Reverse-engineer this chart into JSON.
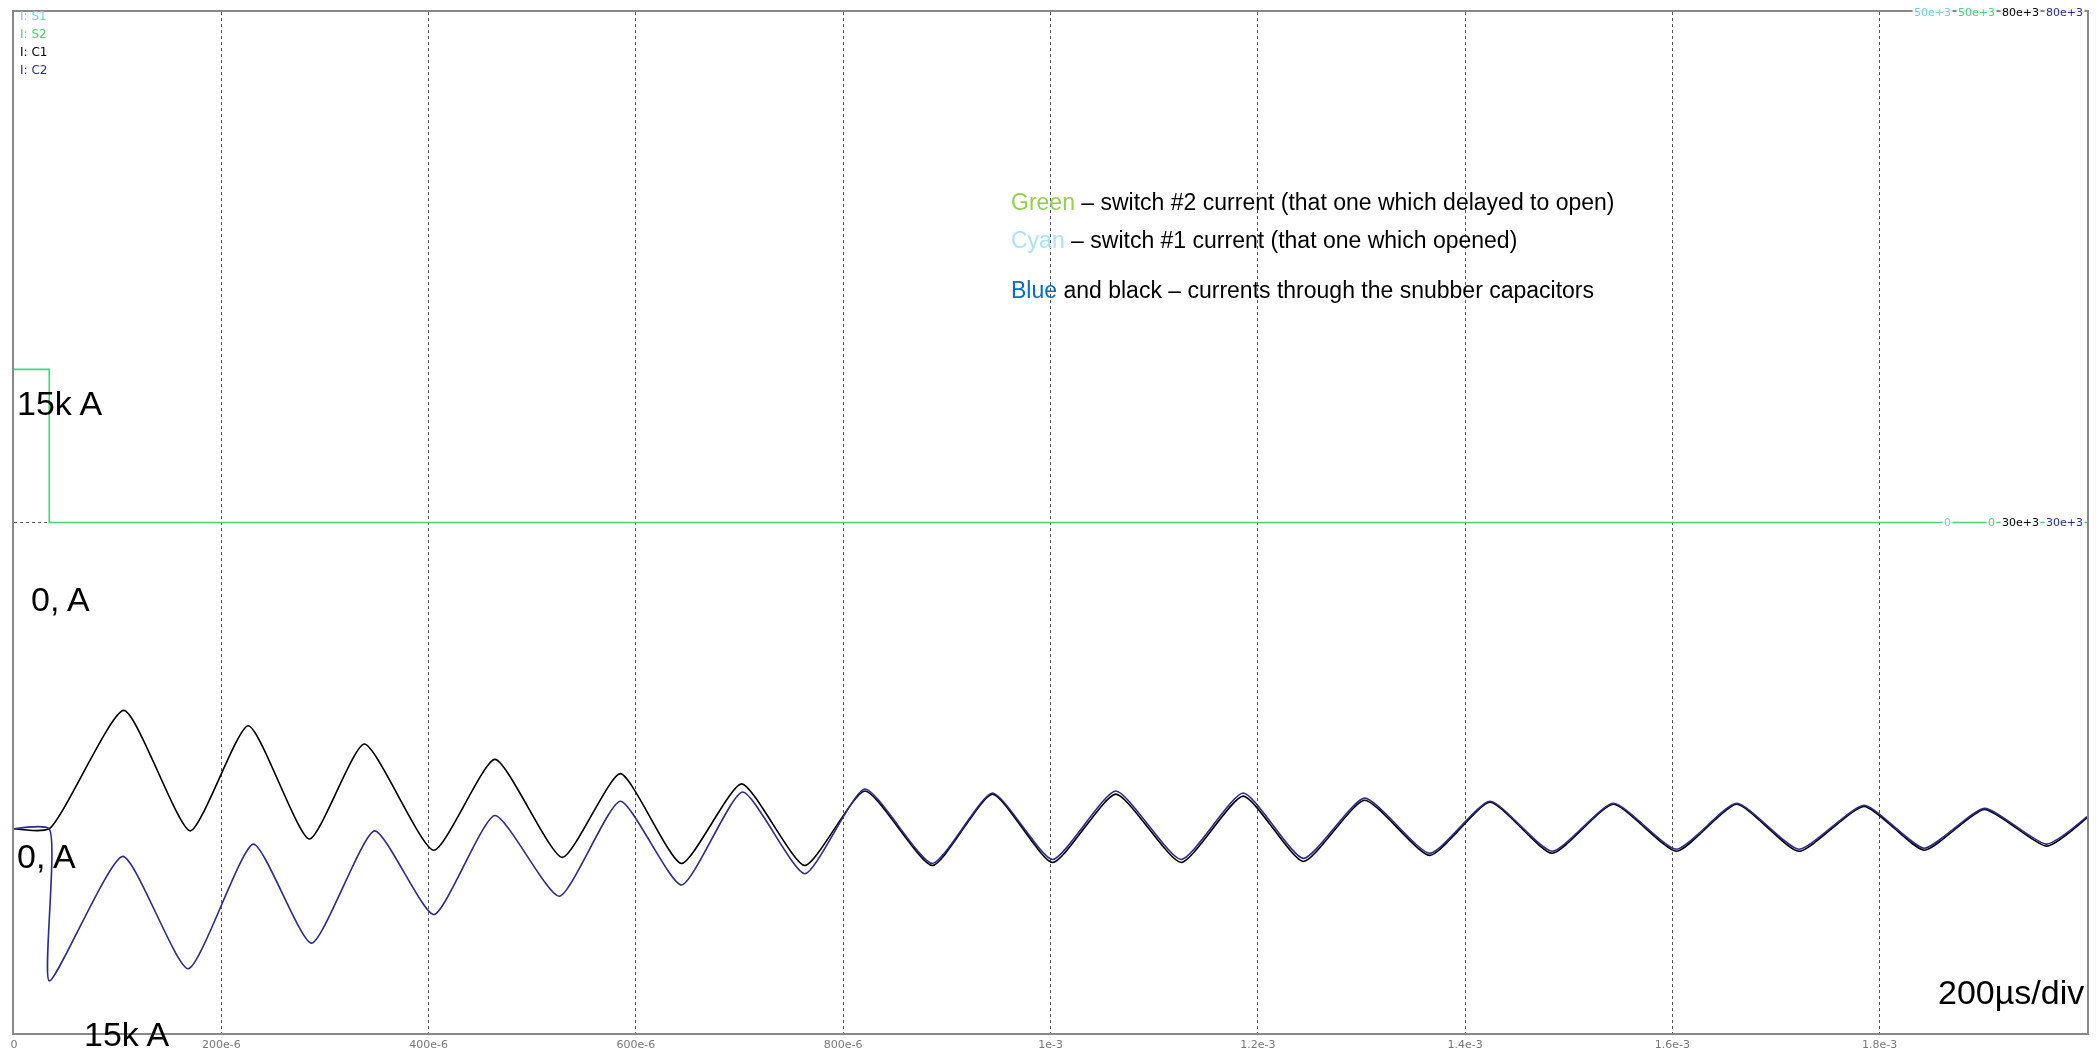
{
  "chart_data": {
    "type": "line",
    "xlim": [
      0,
      0.002
    ],
    "xticks": [
      {
        "value": 0,
        "label": "0"
      },
      {
        "value": 0.0002,
        "label": "200e-6"
      },
      {
        "value": 0.0004,
        "label": "400e-6"
      },
      {
        "value": 0.0006,
        "label": "600e-6"
      },
      {
        "value": 0.0008,
        "label": "800e-6"
      },
      {
        "value": 0.001,
        "label": "1e-3"
      },
      {
        "value": 0.0012,
        "label": "1.2e-3"
      },
      {
        "value": 0.0014,
        "label": "1.4e-3"
      },
      {
        "value": 0.0016,
        "label": "1.6e-3"
      },
      {
        "value": 0.0018,
        "label": "1.8e-3"
      }
    ],
    "ylim": [
      -50000,
      50000
    ],
    "yticks": [
      {
        "value": 50000,
        "label": "50e+3"
      },
      {
        "value": 0,
        "label": "0"
      }
    ],
    "y3lim": [
      -50000,
      50000
    ],
    "y3ticks": [
      {
        "value": 50000,
        "label": "50e+3"
      },
      {
        "value": 0,
        "label": "0"
      }
    ],
    "y2lim": [
      -20000,
      80000
    ],
    "y2ticks": [
      {
        "value": 80000,
        "label": "80e+3"
      },
      {
        "value": 30000,
        "label": "30e+3"
      }
    ],
    "grid": true,
    "series": [
      {
        "name": "I: S1",
        "type": "step",
        "axis": "y",
        "color": "#6fd3e6"
      },
      {
        "name": "I: S2",
        "type": "step",
        "axis": "y3",
        "color": "#3fd97a",
        "x": [
          0,
          3.4e-05,
          0.002
        ],
        "values": [
          15000,
          0,
          0
        ]
      },
      {
        "name": "I: C1",
        "axis": "y2",
        "color": "#000000",
        "x": [
          0,
          3.38e-05,
          0.000106,
          0.00017,
          0.000226,
          0.000285,
          0.000338,
          0.000405,
          0.000464,
          0.000529,
          0.000585,
          0.000644,
          0.000702,
          0.000763,
          0.000821,
          0.000886,
          0.000944,
          0.001002,
          0.001063,
          0.001126,
          0.001186,
          0.001244,
          0.001303,
          0.001366,
          0.001424,
          0.001484,
          0.001543,
          0.001604,
          0.001662,
          0.001722,
          0.001785,
          0.001843,
          0.001901,
          0.001961,
          0.002
        ],
        "values": [
          0,
          0,
          11600,
          -200,
          10100,
          -1000,
          8300,
          -2100,
          6800,
          -2800,
          5400,
          -3400,
          4400,
          -3600,
          3700,
          -3600,
          3400,
          -3300,
          3400,
          -3300,
          3200,
          -3200,
          2800,
          -2600,
          2600,
          -2400,
          2400,
          -2200,
          2400,
          -2200,
          2200,
          -2100,
          1900,
          -1700,
          1100
        ]
      },
      {
        "name": "I: C2",
        "axis": "y2",
        "color": "#2b2b8c",
        "x": [
          0,
          3.38e-05,
          3.4e-05,
          0.000105,
          0.000168,
          0.000231,
          0.000287,
          0.000348,
          0.000405,
          0.000464,
          0.000526,
          0.000585,
          0.000644,
          0.000703,
          0.000763,
          0.000821,
          0.000886,
          0.000944,
          0.001002,
          0.001063,
          0.001126,
          0.001186,
          0.001244,
          0.001303,
          0.001366,
          0.001424,
          0.001484,
          0.001543,
          0.001604,
          0.001662,
          0.001722,
          0.001785,
          0.001843,
          0.001901,
          0.001961,
          0.002
        ],
        "values": [
          0,
          0,
          -14900,
          -2700,
          -13700,
          -1500,
          -11200,
          -200,
          -8400,
          1300,
          -6600,
          2700,
          -5500,
          3600,
          -4400,
          3900,
          -3400,
          3500,
          -3000,
          3700,
          -3000,
          3500,
          -2900,
          3000,
          -2400,
          2700,
          -2200,
          2500,
          -2000,
          2500,
          -2000,
          2300,
          -1900,
          2000,
          -1500,
          1200
        ]
      }
    ],
    "annotations": [
      "Green – switch #2 current (that one which delayed to open)",
      "Cyan – switch #1 current (that one which opened)",
      "Blue and black – currents through the snubber capacitors",
      "15k A",
      "0, A",
      "0, A",
      "15k A",
      "200µs/div"
    ]
  }
}
